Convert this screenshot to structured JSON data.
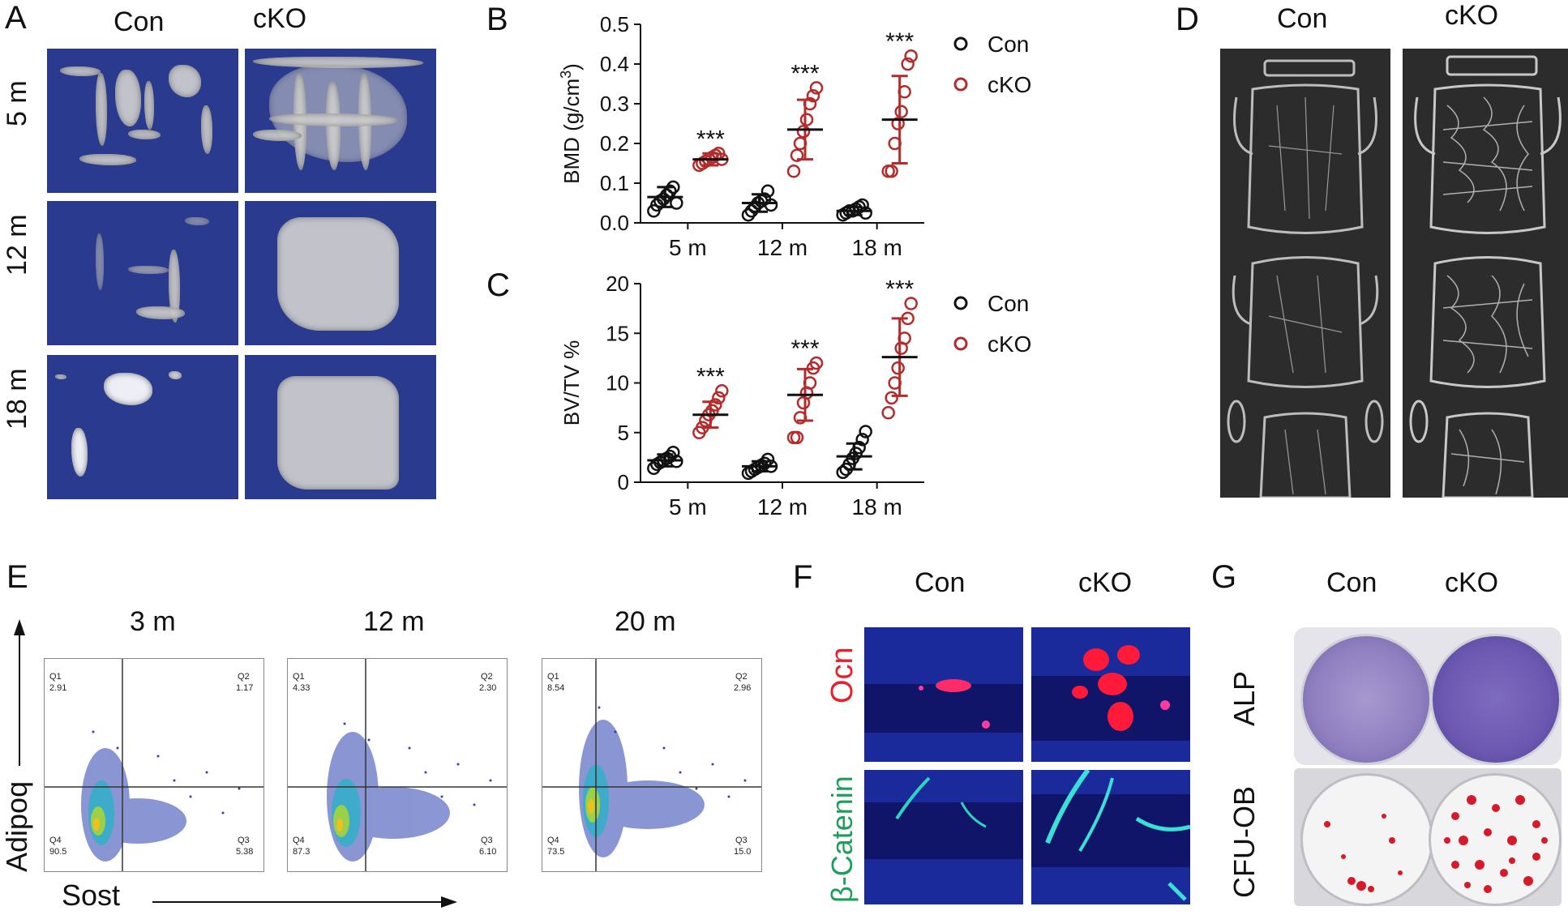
{
  "panels": {
    "A": {
      "letter": "A",
      "col_con": "Con",
      "col_cko": "cKO",
      "rows": [
        "5 m",
        "12 m",
        "18 m"
      ]
    },
    "B": {
      "letter": "B"
    },
    "C": {
      "letter": "C"
    },
    "D": {
      "letter": "D",
      "col_con": "Con",
      "col_cko": "cKO"
    },
    "E": {
      "letter": "E",
      "timepoints": [
        "3 m",
        "12 m",
        "20 m"
      ],
      "y_axis": "Adipoq",
      "x_axis": "Sost",
      "quadrants": [
        {
          "q1": "Q1",
          "q1v": "2.91",
          "q2": "Q2",
          "q2v": "1.17",
          "q3": "Q3",
          "q3v": "5.38",
          "q4": "Q4",
          "q4v": "90.5"
        },
        {
          "q1": "Q1",
          "q1v": "4.33",
          "q2": "Q2",
          "q2v": "2.30",
          "q3": "Q3",
          "q3v": "6.10",
          "q4": "Q4",
          "q4v": "87.3"
        },
        {
          "q1": "Q1",
          "q1v": "8.54",
          "q2": "Q2",
          "q2v": "2.96",
          "q3": "Q3",
          "q3v": "15.0",
          "q4": "Q4",
          "q4v": "73.5"
        }
      ]
    },
    "F": {
      "letter": "F",
      "col_con": "Con",
      "col_cko": "cKO",
      "row1": "Ocn",
      "row2": "β-Catenin",
      "row1_color": "#e8202a",
      "row2_color": "#1e9e5a"
    },
    "G": {
      "letter": "G",
      "col_con": "Con",
      "col_cko": "cKO",
      "row1": "ALP",
      "row2": "CFU-OB"
    }
  },
  "chart_data": [
    {
      "type": "scatter",
      "id": "B",
      "ylabel": "BMD (g/cm3)",
      "ylim": [
        0,
        0.5
      ],
      "yticks": [
        "0.0",
        "0.1",
        "0.2",
        "0.3",
        "0.4",
        "0.5"
      ],
      "categories": [
        "5 m",
        "12 m",
        "18 m"
      ],
      "legend": [
        {
          "name": "Con",
          "color": "#111111"
        },
        {
          "name": "cKO",
          "color": "#b52a2a"
        }
      ],
      "significance": [
        "***",
        "***",
        "***"
      ],
      "groups": [
        {
          "name": "Con",
          "cat": 0,
          "mean": 0.065,
          "sd": 0.025,
          "values": [
            0.03,
            0.045,
            0.055,
            0.06,
            0.07,
            0.08,
            0.09,
            0.05
          ]
        },
        {
          "name": "cKO",
          "cat": 0,
          "mean": 0.16,
          "sd": 0.015,
          "values": [
            0.145,
            0.15,
            0.155,
            0.16,
            0.165,
            0.17,
            0.175,
            0.16
          ]
        },
        {
          "name": "Con",
          "cat": 1,
          "mean": 0.05,
          "sd": 0.022,
          "values": [
            0.02,
            0.03,
            0.04,
            0.05,
            0.055,
            0.06,
            0.08,
            0.045
          ]
        },
        {
          "name": "cKO",
          "cat": 1,
          "mean": 0.235,
          "sd": 0.075,
          "values": [
            0.13,
            0.17,
            0.2,
            0.23,
            0.26,
            0.3,
            0.32,
            0.34
          ]
        },
        {
          "name": "Con",
          "cat": 2,
          "mean": 0.03,
          "sd": 0.01,
          "values": [
            0.02,
            0.025,
            0.03,
            0.03,
            0.035,
            0.04,
            0.045,
            0.025
          ]
        },
        {
          "name": "cKO",
          "cat": 2,
          "mean": 0.26,
          "sd": 0.11,
          "values": [
            0.13,
            0.13,
            0.2,
            0.25,
            0.28,
            0.33,
            0.4,
            0.42
          ]
        }
      ]
    },
    {
      "type": "scatter",
      "id": "C",
      "ylabel": "BV/TV %",
      "ylim": [
        0,
        20
      ],
      "yticks": [
        "0",
        "5",
        "10",
        "15",
        "20"
      ],
      "categories": [
        "5 m",
        "12 m",
        "18 m"
      ],
      "legend": [
        {
          "name": "Con",
          "color": "#111111"
        },
        {
          "name": "cKO",
          "color": "#b52a2a"
        }
      ],
      "significance": [
        "***",
        "***",
        "***"
      ],
      "groups": [
        {
          "name": "Con",
          "cat": 0,
          "mean": 2.2,
          "sd": 0.6,
          "values": [
            1.4,
            1.8,
            2.0,
            2.2,
            2.4,
            2.6,
            3.0,
            2.1
          ]
        },
        {
          "name": "cKO",
          "cat": 0,
          "mean": 6.8,
          "sd": 1.3,
          "values": [
            5.0,
            5.5,
            6.2,
            6.8,
            7.2,
            7.8,
            8.5,
            9.2
          ]
        },
        {
          "name": "Con",
          "cat": 1,
          "mean": 1.6,
          "sd": 0.5,
          "values": [
            0.9,
            1.1,
            1.3,
            1.5,
            1.7,
            1.9,
            2.3,
            1.6
          ]
        },
        {
          "name": "cKO",
          "cat": 1,
          "mean": 8.8,
          "sd": 2.6,
          "values": [
            4.5,
            4.5,
            6.5,
            8.0,
            9.0,
            10.0,
            11.5,
            12.0
          ]
        },
        {
          "name": "Con",
          "cat": 2,
          "mean": 2.6,
          "sd": 1.3,
          "values": [
            1.0,
            1.3,
            1.8,
            2.4,
            2.9,
            3.5,
            4.3,
            5.1
          ]
        },
        {
          "name": "cKO",
          "cat": 2,
          "mean": 12.6,
          "sd": 3.9,
          "values": [
            7.0,
            8.5,
            10.0,
            11.5,
            13.5,
            14.5,
            16.5,
            18.0
          ]
        }
      ]
    }
  ]
}
